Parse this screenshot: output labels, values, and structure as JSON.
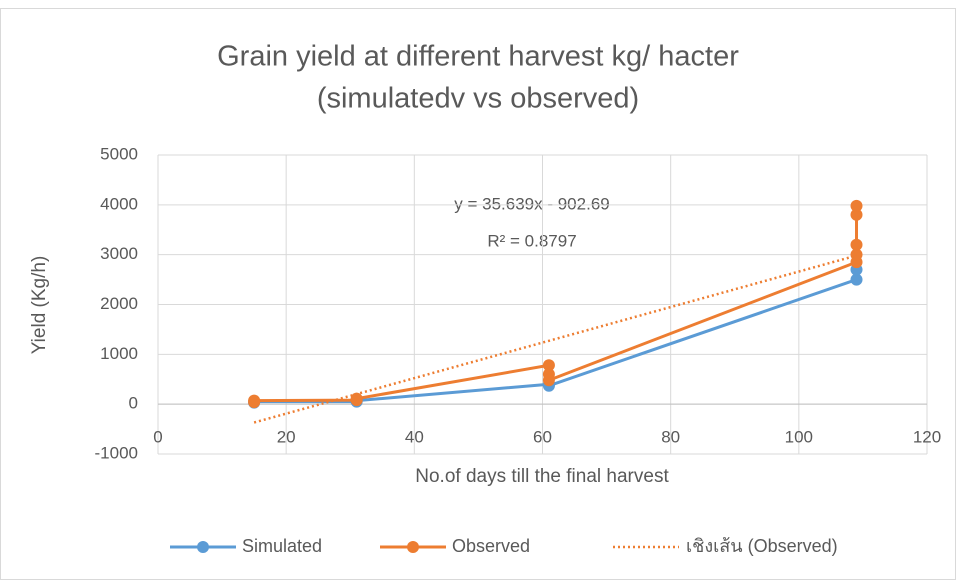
{
  "chart_data": {
    "type": "scatter",
    "title": [
      "Grain yield at different harvest kg/ hacter",
      "(simulatedv vs observed)"
    ],
    "x_label": "No.of days till the final harvest",
    "y_label": "Yield (Kg/h)",
    "xlim": [
      0,
      120
    ],
    "xticks": [
      0,
      20,
      40,
      60,
      80,
      100,
      120
    ],
    "ylim": [
      -1000,
      5000
    ],
    "yticks": [
      -1000,
      0,
      1000,
      2000,
      3000,
      4000,
      5000
    ],
    "grid": true,
    "legend": "bottom",
    "series": [
      {
        "name": "Simulated",
        "color": "#5b9bd5",
        "x": [
          15,
          15,
          31,
          31,
          61,
          61,
          109,
          109
        ],
        "values": [
          30,
          50,
          50,
          70,
          400,
          370,
          2500,
          2700
        ]
      },
      {
        "name": "Observed",
        "color": "#ed7d31",
        "x": [
          15,
          15,
          31,
          31,
          61,
          61,
          61,
          109,
          109,
          109,
          109,
          109
        ],
        "values": [
          40,
          70,
          80,
          110,
          780,
          600,
          480,
          2850,
          3000,
          3200,
          3800,
          3980
        ]
      }
    ],
    "trendline": {
      "name": "เชิงเส้น (Observed)",
      "color": "#ed7d31",
      "slope": 35.639,
      "intercept": -902.69,
      "x": [
        15,
        109
      ],
      "equation": "y = 35.639x - 902.69",
      "r2": "R² = 0.8797"
    }
  }
}
